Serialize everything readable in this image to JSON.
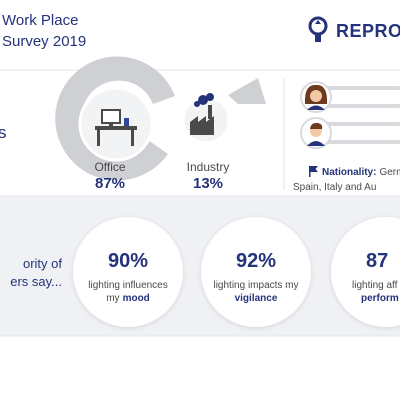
{
  "header": {
    "title_lines": [
      "Work Place",
      "Survey 2019"
    ],
    "brand": "REPRO"
  },
  "workplace": {
    "left_fragment": "s",
    "segments": [
      {
        "label": "Office",
        "share": "87%"
      },
      {
        "label": "Industry",
        "share": "13%"
      }
    ]
  },
  "respondents": {
    "nationality_label": "Nationality:",
    "nationality_lines": [
      "Germ",
      "Spain, Italy and Au"
    ]
  },
  "opinions": {
    "intro_lines": [
      "ority of",
      "ers say..."
    ],
    "items": [
      {
        "value": "90%",
        "line1": "lighting influences",
        "line2_plain": "my",
        "line2_bold": "mood"
      },
      {
        "value": "92%",
        "line1": "lighting impacts my",
        "line2_bold": "vigilance"
      },
      {
        "value": "87",
        "line1": "lighting aff",
        "line2_bold": "perform"
      }
    ]
  }
}
